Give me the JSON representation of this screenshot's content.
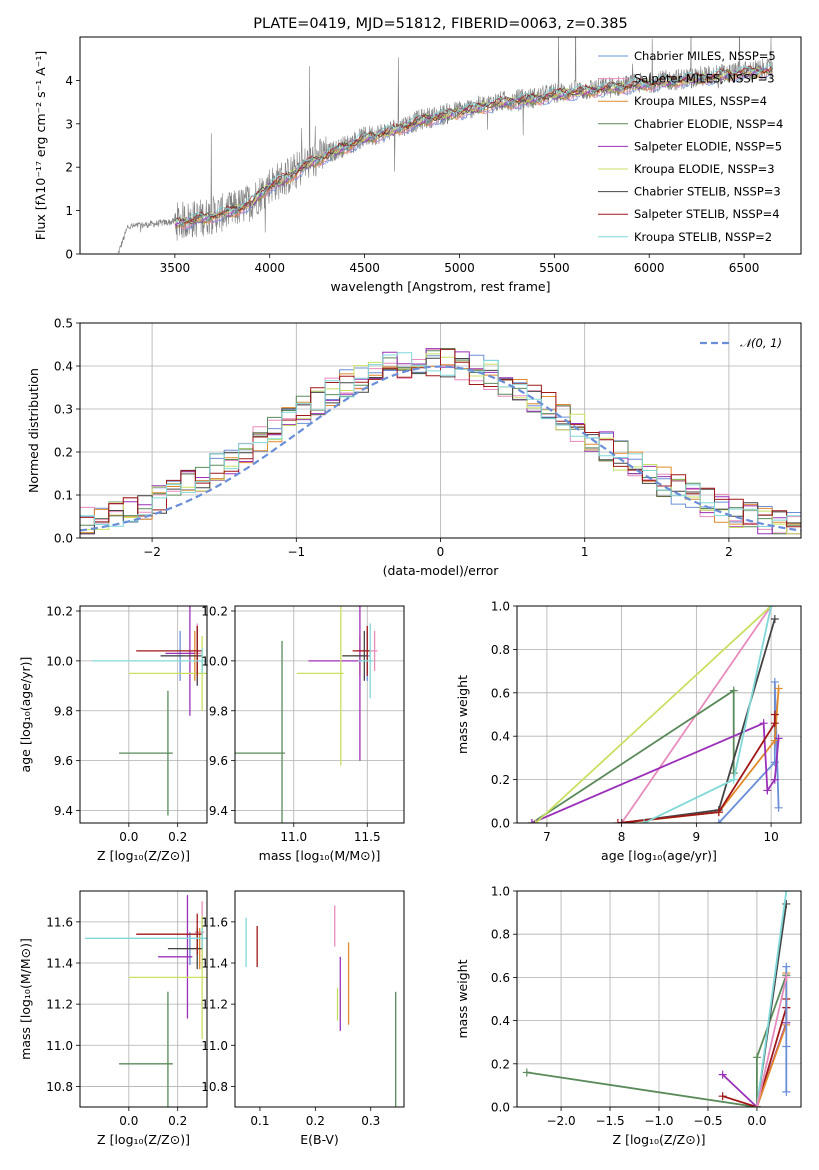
{
  "chart_data": [
    {
      "type": "line",
      "title": "PLATE=0419, MJD=51812, FIBERID=0063, z=0.385",
      "xlabel": "wavelength [Angstrom, rest frame]",
      "ylabel": "Flux [fλ10⁻¹⁷ erg cm⁻² s⁻¹ A⁻¹]",
      "xlim": [
        3000,
        6800
      ],
      "ylim": [
        0,
        5
      ],
      "xticks": [
        3500,
        4000,
        4500,
        5000,
        5500,
        6000,
        6500
      ],
      "yticks": [
        0,
        1,
        2,
        3,
        4
      ],
      "grid": false,
      "legend_position": "top-right",
      "data_spectrum": {
        "color": "#808080",
        "x": [
          3200,
          3300,
          3400,
          3500,
          3600,
          3700,
          3800,
          3900,
          4000,
          4100,
          4200,
          4300,
          4400,
          4500,
          4600,
          4700,
          4800,
          4900,
          5000,
          5100,
          5200,
          5300,
          5400,
          5500,
          5600,
          5700,
          5800,
          5900,
          6000,
          6100,
          6200,
          6300,
          6400,
          6500,
          6600
        ],
        "y": [
          0.6,
          0.65,
          0.7,
          0.75,
          0.8,
          0.9,
          1.0,
          1.2,
          1.6,
          1.8,
          2.1,
          2.3,
          2.5,
          2.7,
          2.8,
          2.95,
          3.1,
          3.2,
          3.3,
          3.4,
          3.5,
          3.55,
          3.6,
          3.7,
          3.75,
          3.8,
          3.85,
          3.9,
          3.95,
          4.0,
          4.05,
          4.1,
          4.15,
          4.2,
          4.25
        ]
      },
      "series": [
        {
          "name": "Chabrier MILES, N_SSP=5",
          "color": "#6a8fd8"
        },
        {
          "name": "Salpeter MILES, N_SSP=3",
          "color": "#e88bbd"
        },
        {
          "name": "Kroupa MILES, N_SSP=4",
          "color": "#e08a2c"
        },
        {
          "name": "Chabrier ELODIE, N_SSP=4",
          "color": "#5a8a5a"
        },
        {
          "name": "Salpeter ELODIE, N_SSP=5",
          "color": "#9b30b8"
        },
        {
          "name": "Kroupa ELODIE, N_SSP=3",
          "color": "#c8e060"
        },
        {
          "name": "Chabrier STELIB, N_SSP=3",
          "color": "#444444"
        },
        {
          "name": "Salpeter STELIB, N_SSP=4",
          "color": "#a01818"
        },
        {
          "name": "Kroupa STELIB, N_SSP=2",
          "color": "#80d8d8"
        }
      ]
    },
    {
      "type": "line",
      "xlabel": "(data-model)/error",
      "ylabel": "Normed distribution",
      "xlim": [
        -2.5,
        2.5
      ],
      "ylim": [
        0,
        0.5
      ],
      "xticks": [
        -2,
        -1,
        0,
        1,
        2
      ],
      "yticks": [
        0.0,
        0.1,
        0.2,
        0.3,
        0.4,
        0.5
      ],
      "grid": true,
      "legend_position": "top-right",
      "legend_label": "𝒩(0, 1)",
      "reference_curve": {
        "mean": 0,
        "sigma": 1,
        "color": "#6a8fd8"
      }
    },
    {
      "type": "scatter",
      "xlabel": "Z [log₁₀(Z/Z⊙)]",
      "ylabel": "age  [log₁₀(age/yr)]",
      "xlim": [
        -0.2,
        0.32
      ],
      "ylim": [
        9.35,
        10.22
      ],
      "xticks": [
        0.0,
        0.2
      ],
      "yticks": [
        9.4,
        9.6,
        9.8,
        10.0,
        10.2
      ],
      "grid": true,
      "points": [
        {
          "x": 0.21,
          "y": 10.02,
          "xerr": 0.08,
          "yerr": 0.1,
          "color": "#6a8fd8"
        },
        {
          "x": 0.28,
          "y": 10.03,
          "xerr": 0.05,
          "yerr": 0.12,
          "color": "#e88bbd"
        },
        {
          "x": 0.27,
          "y": 10.02,
          "xerr": 0.03,
          "yerr": 0.1,
          "color": "#e08a2c"
        },
        {
          "x": 0.16,
          "y": 9.63,
          "xerr": 0.2,
          "yerr": 0.25,
          "color": "#5a8a5a"
        },
        {
          "x": 0.25,
          "y": 10.03,
          "xerr": 0.1,
          "yerr": 0.25,
          "color": "#9b30b8"
        },
        {
          "x": 0.3,
          "y": 9.95,
          "xerr": 0.3,
          "yerr": 0.15,
          "color": "#c8e060"
        },
        {
          "x": 0.28,
          "y": 10.02,
          "xerr": 0.15,
          "yerr": 0.12,
          "color": "#444444"
        },
        {
          "x": 0.28,
          "y": 10.04,
          "xerr": 0.25,
          "yerr": 0.1,
          "color": "#a01818"
        },
        {
          "x": 0.3,
          "y": 10.0,
          "xerr": 0.45,
          "yerr": 0.05,
          "color": "#80d8d8"
        }
      ]
    },
    {
      "type": "scatter",
      "xlabel": "mass [log₁₀(M/M⊙)]",
      "ylabel": "",
      "xlim": [
        10.6,
        11.75
      ],
      "ylim": [
        9.35,
        10.22
      ],
      "xticks": [
        11.0,
        11.5
      ],
      "yticks": [
        9.4,
        9.6,
        9.8,
        10.0,
        10.2
      ],
      "grid": true,
      "points": [
        {
          "x": 11.5,
          "y": 10.02,
          "xerr": 0.08,
          "yerr": 0.1,
          "color": "#6a8fd8"
        },
        {
          "x": 11.55,
          "y": 10.04,
          "xerr": 0.12,
          "yerr": 0.08,
          "color": "#e88bbd"
        },
        {
          "x": 11.45,
          "y": 10.02,
          "xerr": 0.12,
          "yerr": 0.08,
          "color": "#e08a2c"
        },
        {
          "x": 10.92,
          "y": 9.63,
          "xerr": 0.35,
          "yerr": 0.45,
          "color": "#5a8a5a"
        },
        {
          "x": 11.45,
          "y": 10.0,
          "xerr": 0.35,
          "yerr": 0.4,
          "color": "#9b30b8"
        },
        {
          "x": 11.32,
          "y": 9.95,
          "xerr": 0.3,
          "yerr": 0.37,
          "color": "#c8e060"
        },
        {
          "x": 11.48,
          "y": 10.02,
          "xerr": 0.15,
          "yerr": 0.1,
          "color": "#444444"
        },
        {
          "x": 11.5,
          "y": 10.04,
          "xerr": 0.1,
          "yerr": 0.1,
          "color": "#a01818"
        },
        {
          "x": 11.52,
          "y": 10.0,
          "xerr": 0.08,
          "yerr": 0.15,
          "color": "#80d8d8"
        }
      ]
    },
    {
      "type": "line",
      "xlabel": "age  [log₁₀(age/yr)]",
      "ylabel": "mass weight",
      "xlim": [
        6.6,
        10.4
      ],
      "ylim": [
        0,
        1
      ],
      "xticks": [
        7,
        8,
        9,
        10
      ],
      "yticks": [
        0.0,
        0.2,
        0.4,
        0.6,
        0.8,
        1.0
      ],
      "grid": true,
      "series": [
        {
          "color": "#6a8fd8",
          "x": [
            9.3,
            10.05,
            10.05,
            10.1
          ],
          "y": [
            0.0,
            0.28,
            0.65,
            0.07
          ]
        },
        {
          "color": "#e88bbd",
          "x": [
            8.0,
            10.0
          ],
          "y": [
            0.0,
            1.0
          ]
        },
        {
          "color": "#e08a2c",
          "x": [
            8.0,
            9.3,
            10.05,
            10.1
          ],
          "y": [
            0.0,
            0.05,
            0.38,
            0.62
          ]
        },
        {
          "color": "#5a8a5a",
          "x": [
            6.8,
            9.5,
            9.5
          ],
          "y": [
            0.0,
            0.61,
            0.23
          ]
        },
        {
          "color": "#9b30b8",
          "x": [
            6.8,
            9.9,
            9.95,
            10.05,
            10.1
          ],
          "y": [
            0.0,
            0.46,
            0.15,
            0.2,
            0.39
          ]
        },
        {
          "color": "#c8e060",
          "x": [
            6.85,
            10.0
          ],
          "y": [
            0.0,
            1.0
          ]
        },
        {
          "color": "#444444",
          "x": [
            8.0,
            9.3,
            10.05
          ],
          "y": [
            0.0,
            0.06,
            0.94
          ]
        },
        {
          "color": "#a01818",
          "x": [
            7.95,
            9.3,
            10.05,
            10.05
          ],
          "y": [
            0.0,
            0.05,
            0.46,
            0.5
          ]
        },
        {
          "color": "#80d8d8",
          "x": [
            8.3,
            9.5,
            10.0
          ],
          "y": [
            0.0,
            0.2,
            1.0
          ]
        }
      ]
    },
    {
      "type": "scatter",
      "xlabel": "Z [log₁₀(Z/Z⊙)]",
      "ylabel": "mass [log₁₀(M/M⊙)]",
      "xlim": [
        -0.2,
        0.32
      ],
      "ylim": [
        10.7,
        11.75
      ],
      "xticks": [
        0.0,
        0.2
      ],
      "yticks": [
        10.8,
        11.0,
        11.2,
        11.4,
        11.6
      ],
      "grid": true,
      "points": [
        {
          "x": 0.25,
          "y": 11.47,
          "xerr": 0.06,
          "yerr": 0.08,
          "color": "#6a8fd8"
        },
        {
          "x": 0.3,
          "y": 11.55,
          "xerr": 0.03,
          "yerr": 0.15,
          "color": "#e88bbd"
        },
        {
          "x": 0.29,
          "y": 11.47,
          "xerr": 0.04,
          "yerr": 0.1,
          "color": "#e08a2c"
        },
        {
          "x": 0.16,
          "y": 10.91,
          "xerr": 0.2,
          "yerr": 0.35,
          "color": "#5a8a5a"
        },
        {
          "x": 0.24,
          "y": 11.43,
          "xerr": 0.12,
          "yerr": 0.3,
          "color": "#9b30b8"
        },
        {
          "x": 0.3,
          "y": 11.33,
          "xerr": 0.3,
          "yerr": 0.3,
          "color": "#c8e060"
        },
        {
          "x": 0.28,
          "y": 11.47,
          "xerr": 0.12,
          "yerr": 0.1,
          "color": "#444444"
        },
        {
          "x": 0.28,
          "y": 11.54,
          "xerr": 0.25,
          "yerr": 0.1,
          "color": "#a01818"
        },
        {
          "x": 0.3,
          "y": 11.52,
          "xerr": 0.48,
          "yerr": 0.05,
          "color": "#80d8d8"
        }
      ]
    },
    {
      "type": "scatter",
      "xlabel": "E(B-V)",
      "ylabel": "",
      "xlim": [
        0.055,
        0.36
      ],
      "ylim": [
        10.7,
        11.75
      ],
      "xticks": [
        0.1,
        0.2,
        0.3
      ],
      "yticks": [
        10.8,
        11.0,
        11.2,
        11.4,
        11.6
      ],
      "grid": false,
      "points": [
        {
          "x": 0.075,
          "y": 11.5,
          "yerr": 0.12,
          "color": "#80d8d8"
        },
        {
          "x": 0.095,
          "y": 11.48,
          "yerr": 0.1,
          "color": "#a01818"
        },
        {
          "x": 0.235,
          "y": 11.58,
          "yerr": 0.1,
          "color": "#e88bbd"
        },
        {
          "x": 0.245,
          "y": 11.25,
          "yerr": 0.18,
          "color": "#9b30b8"
        },
        {
          "x": 0.24,
          "y": 11.2,
          "yerr": 0.08,
          "color": "#c8e060"
        },
        {
          "x": 0.26,
          "y": 11.3,
          "yerr": 0.2,
          "color": "#e08a2c"
        },
        {
          "x": 0.345,
          "y": 10.98,
          "yerr": 0.28,
          "color": "#5a8a5a"
        }
      ]
    },
    {
      "type": "line",
      "xlabel": "Z [log₁₀(Z/Z⊙)]",
      "ylabel": "mass weight",
      "xlim": [
        -2.45,
        0.45
      ],
      "ylim": [
        0,
        1
      ],
      "xticks": [
        -2.0,
        -1.5,
        -1.0,
        -0.5,
        0.0
      ],
      "yticks": [
        0.0,
        0.2,
        0.4,
        0.6,
        0.8,
        1.0
      ],
      "grid": true,
      "series": [
        {
          "color": "#5a8a5a",
          "x": [
            -2.35,
            0.0,
            0.0,
            0.3
          ],
          "y": [
            0.16,
            0.0,
            0.23,
            0.61
          ]
        },
        {
          "color": "#9b30b8",
          "x": [
            -0.35,
            0.0,
            0.3,
            0.3
          ],
          "y": [
            0.15,
            0.0,
            0.39,
            0.46
          ]
        },
        {
          "color": "#a01818",
          "x": [
            -0.35,
            0.0,
            0.3,
            0.3
          ],
          "y": [
            0.05,
            0.0,
            0.46,
            0.5
          ]
        },
        {
          "color": "#444444",
          "x": [
            0.0,
            0.3
          ],
          "y": [
            0.0,
            0.94
          ]
        },
        {
          "color": "#80d8d8",
          "x": [
            0.0,
            0.3
          ],
          "y": [
            0.0,
            1.0
          ]
        },
        {
          "color": "#e08a2c",
          "x": [
            0.0,
            0.3,
            0.3
          ],
          "y": [
            0.0,
            0.38,
            0.62
          ]
        },
        {
          "color": "#6a8fd8",
          "x": [
            0.3,
            0.3,
            0.3
          ],
          "y": [
            0.07,
            0.28,
            0.65
          ]
        },
        {
          "color": "#e88bbd",
          "x": [
            0.0,
            0.3
          ],
          "y": [
            0.0,
            0.6
          ]
        }
      ]
    }
  ]
}
